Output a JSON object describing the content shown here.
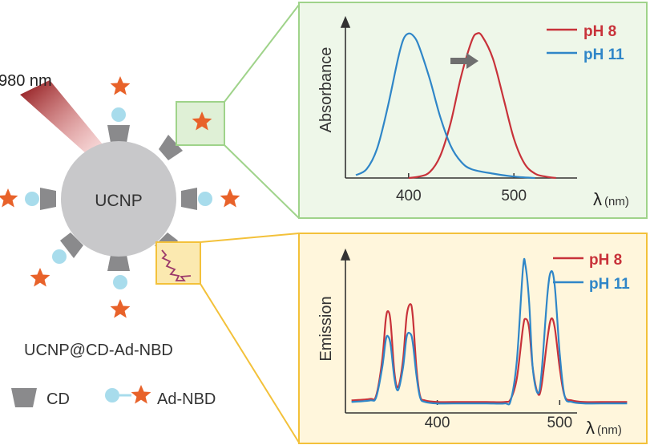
{
  "laser_label": "980 nm",
  "particle_label": "UCNP",
  "construct_label": "UCNP@CD-Ad-NBD",
  "legend": {
    "cd_label": "CD",
    "ad_nbd_label": "Ad-NBD"
  },
  "colors": {
    "red": "#c8323a",
    "blue": "#2f86c8",
    "green_border": "#9fd38a",
    "green_fill": "#eef7e9",
    "yellow_border": "#f3c13a",
    "yellow_fill": "#fff6dc",
    "particle": "#c8c8ca",
    "cd": "#8a8a8c",
    "star": "#e8622a",
    "ad": "#a8dcec"
  },
  "chart_data": [
    {
      "type": "line",
      "ylabel": "Absorbance",
      "xlabel": "λ",
      "xunit": "(nm)",
      "x_ticks": [
        400,
        500
      ],
      "xlim": [
        340,
        560
      ],
      "ylim": [
        0,
        1
      ],
      "legend_position": "top-right",
      "series": [
        {
          "name": "pH 8",
          "color": "#c8323a",
          "x": [
            400,
            410,
            420,
            430,
            440,
            450,
            460,
            465,
            470,
            480,
            490,
            500,
            510,
            520,
            530,
            540
          ],
          "y": [
            0.0,
            0.01,
            0.04,
            0.15,
            0.38,
            0.7,
            0.94,
            0.99,
            0.97,
            0.82,
            0.55,
            0.27,
            0.1,
            0.03,
            0.01,
            0.0
          ]
        },
        {
          "name": "pH 11",
          "color": "#2f86c8",
          "x": [
            350,
            360,
            370,
            380,
            390,
            395,
            400,
            405,
            410,
            420,
            430,
            440,
            450,
            460,
            480,
            500,
            520
          ],
          "y": [
            0.02,
            0.06,
            0.2,
            0.48,
            0.82,
            0.95,
            0.99,
            0.97,
            0.9,
            0.68,
            0.42,
            0.22,
            0.11,
            0.06,
            0.03,
            0.01,
            0.0
          ]
        }
      ]
    },
    {
      "type": "line",
      "ylabel": "Emission",
      "xlabel": "λ",
      "xunit": "(nm)",
      "x_ticks": [
        400,
        500
      ],
      "xlim": [
        325,
        560
      ],
      "ylim": [
        0,
        1
      ],
      "legend_position": "top-right",
      "series": [
        {
          "name": "pH 8",
          "color": "#c8323a",
          "x": [
            330,
            345,
            350,
            355,
            358,
            360,
            362,
            365,
            368,
            372,
            375,
            378,
            380,
            383,
            386,
            390,
            400,
            420,
            440,
            455,
            460,
            465,
            470,
            472,
            475,
            478,
            482,
            485,
            490,
            493,
            496,
            500,
            504,
            510,
            520,
            540,
            555
          ],
          "y": [
            0.03,
            0.04,
            0.06,
            0.3,
            0.58,
            0.63,
            0.55,
            0.22,
            0.12,
            0.3,
            0.6,
            0.68,
            0.6,
            0.25,
            0.06,
            0.03,
            0.02,
            0.02,
            0.02,
            0.02,
            0.04,
            0.18,
            0.52,
            0.58,
            0.52,
            0.25,
            0.08,
            0.12,
            0.45,
            0.58,
            0.52,
            0.25,
            0.06,
            0.03,
            0.02,
            0.02,
            0.02
          ]
        },
        {
          "name": "pH 11",
          "color": "#2f86c8",
          "x": [
            330,
            345,
            350,
            355,
            358,
            360,
            362,
            365,
            368,
            372,
            375,
            378,
            380,
            383,
            386,
            390,
            400,
            420,
            440,
            455,
            460,
            465,
            470,
            472,
            475,
            478,
            482,
            485,
            490,
            493,
            496,
            500,
            504,
            510,
            520,
            540,
            555
          ],
          "y": [
            0.02,
            0.03,
            0.05,
            0.25,
            0.44,
            0.46,
            0.4,
            0.18,
            0.1,
            0.25,
            0.46,
            0.48,
            0.42,
            0.2,
            0.05,
            0.02,
            0.01,
            0.01,
            0.01,
            0.01,
            0.03,
            0.3,
            0.92,
            0.94,
            0.7,
            0.25,
            0.08,
            0.2,
            0.75,
            0.9,
            0.8,
            0.35,
            0.06,
            0.02,
            0.01,
            0.01,
            0.01
          ]
        }
      ]
    }
  ]
}
